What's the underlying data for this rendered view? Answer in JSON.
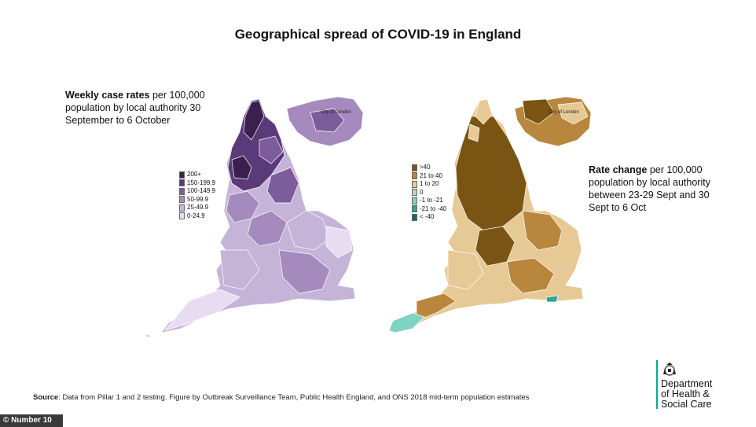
{
  "title": "Geographical spread of COVID-19 in England",
  "left_map": {
    "description_bold": "Weekly case rates",
    "description_rest": " per 100,000 population by local authority 30 September to 6 October",
    "legend": [
      {
        "label": "200+",
        "color": "#3b1f4f"
      },
      {
        "label": "150-199.9",
        "color": "#5a3a78"
      },
      {
        "label": "100-149.9",
        "color": "#7d5c9c"
      },
      {
        "label": "50-99.9",
        "color": "#a58bbd"
      },
      {
        "label": "25-49.9",
        "color": "#c6b3d8"
      },
      {
        "label": "0-24.9",
        "color": "#e8ddf0"
      }
    ],
    "inset_label": "City of London"
  },
  "right_map": {
    "description_bold": "Rate change",
    "description_rest": " per 100,000 population by local authority between 23-29 Sept and 30 Sept to 6 Oct",
    "legend": [
      {
        "label": ">40",
        "color": "#7a5413"
      },
      {
        "label": "21 to 40",
        "color": "#b8863d"
      },
      {
        "label": "1 to 20",
        "color": "#e6c995"
      },
      {
        "label": "0",
        "color": "#c8c8c8"
      },
      {
        "label": "-1 to -21",
        "color": "#7ed3c3"
      },
      {
        "label": "-21 to -40",
        "color": "#2fa596"
      },
      {
        "label": "< -40",
        "color": "#1b6b62"
      }
    ],
    "inset_label": "City of London"
  },
  "source": {
    "bold": "Source",
    "text": ": Data from Pillar 1 and 2 testing. Figure by Outbreak Surveillance Team, Public Health England, and ONS 2018 mid-term population estimates"
  },
  "department": {
    "line1": "Department",
    "line2": "of Health &",
    "line3": "Social Care",
    "accent_color": "#00ad93"
  },
  "credit": "© Number 10"
}
